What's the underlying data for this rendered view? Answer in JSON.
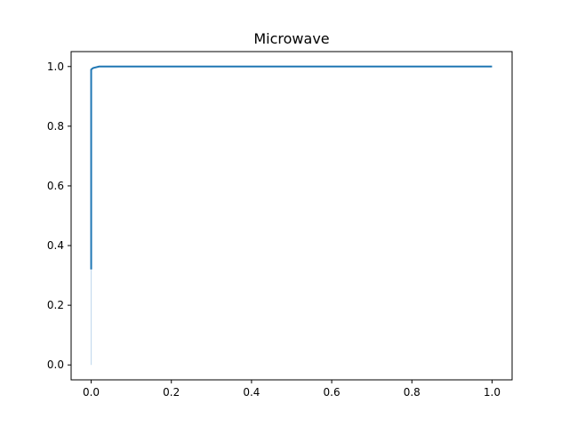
{
  "chart_data": {
    "type": "line",
    "title": "Microwave",
    "xlabel": "",
    "ylabel": "",
    "xlim": [
      -0.05,
      1.05
    ],
    "ylim": [
      -0.05,
      1.05
    ],
    "xticks": [
      0.0,
      0.2,
      0.4,
      0.6,
      0.8,
      1.0
    ],
    "xtick_labels": [
      "0.0",
      "0.2",
      "0.4",
      "0.6",
      "0.8",
      "1.0"
    ],
    "yticks": [
      0.0,
      0.2,
      0.4,
      0.6,
      0.8,
      1.0
    ],
    "ytick_labels": [
      "0.0",
      "0.2",
      "0.4",
      "0.6",
      "0.8",
      "1.0"
    ],
    "grid": false,
    "series": [
      {
        "color": "#1f77b4",
        "x": [
          0.0,
          0.0,
          0.0,
          0.005,
          0.02,
          1.0
        ],
        "y": [
          0.0,
          0.32,
          0.99,
          0.995,
          1.0,
          1.0
        ],
        "segments": [
          {
            "from_index": 0,
            "to_index": 1,
            "color": "#c6dbef"
          },
          {
            "from_index": 1,
            "to_index": 5,
            "color": "#1f77b4"
          }
        ]
      }
    ]
  }
}
